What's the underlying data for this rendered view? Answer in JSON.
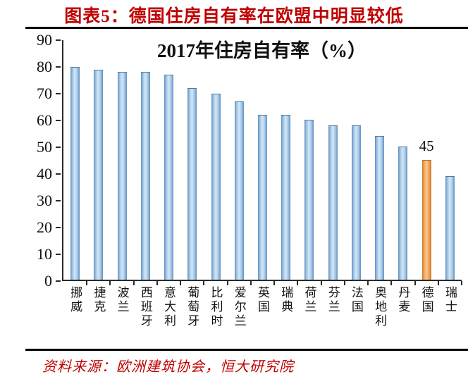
{
  "header": {
    "title": "图表5：德国住房自有率在欧盟中明显较低"
  },
  "footer": {
    "source": "资料来源：欧洲建筑协会，恒大研究院"
  },
  "colors": {
    "caption_red": "#c00000",
    "bar_blue": "#a5c8e8",
    "bar_highlight_orange": "#f0a85e",
    "axis_black": "#2a2a2a"
  },
  "chart_data": {
    "type": "bar",
    "title": "2017年住房自有率（%）",
    "categories": [
      "挪威",
      "捷克",
      "波兰",
      "西班牙",
      "意大利",
      "葡萄牙",
      "比利时",
      "爱尔兰",
      "英国",
      "瑞典",
      "荷兰",
      "芬兰",
      "法国",
      "奥地利",
      "丹麦",
      "德国",
      "瑞士"
    ],
    "values": [
      80,
      79,
      78,
      78,
      77,
      72,
      70,
      67,
      62,
      62,
      60,
      58,
      58,
      54,
      50,
      45,
      39
    ],
    "xlabel": "",
    "ylabel": "",
    "ylim": [
      0,
      90
    ],
    "yticks": [
      0,
      10,
      20,
      30,
      40,
      50,
      60,
      70,
      80,
      90
    ],
    "grid": false,
    "legend_position": "none",
    "highlight": {
      "index": 15,
      "category": "德国",
      "value": 45,
      "label": "45"
    }
  }
}
